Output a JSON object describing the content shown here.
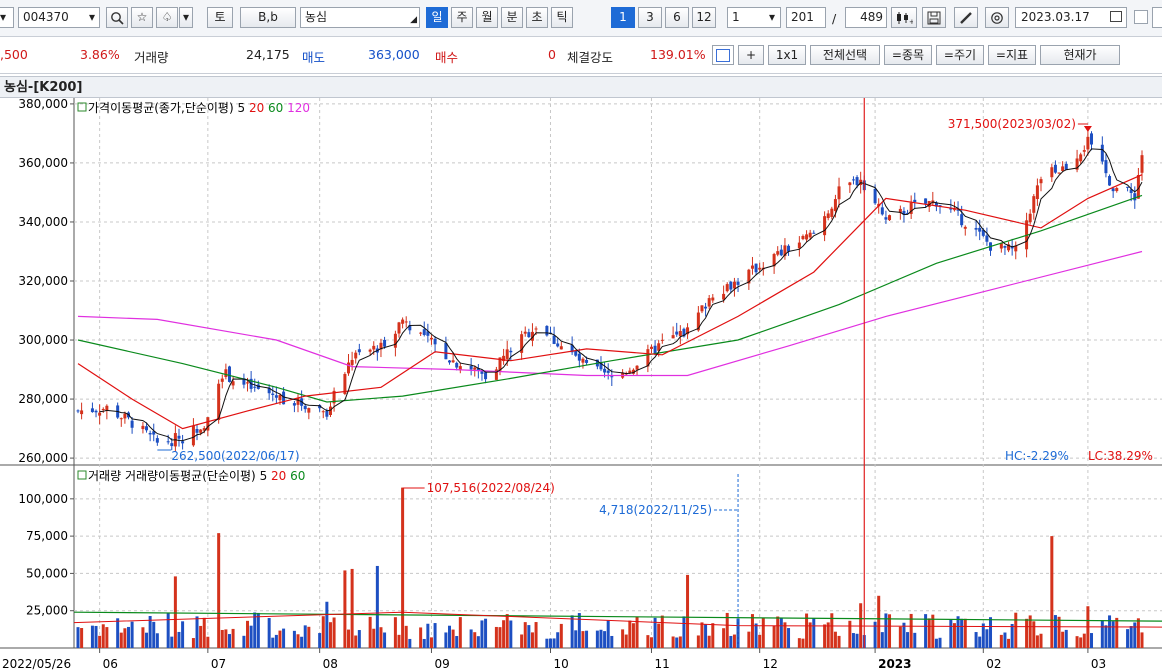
{
  "toolbar": {
    "code": "004370",
    "name": "농심",
    "bb_label": "B,b",
    "to_label": "토",
    "period_tabs": [
      "일",
      "주",
      "월",
      "분",
      "초",
      "틱"
    ],
    "active_period": "일",
    "interval_buttons": [
      "1",
      "3",
      "6",
      "12"
    ],
    "active_interval": "1",
    "unit_select": "1",
    "view_count": "201",
    "total_count": "489",
    "date": "2023.03.17"
  },
  "quote": {
    "price_tail": ",500",
    "change_pct": "3.86%",
    "volume_label": "거래량",
    "volume": "24,175",
    "sell_label": "매도",
    "sell": "363,000",
    "buy_label": "매수",
    "buy": "0",
    "strength_label": "체결강도",
    "strength": "139.01%",
    "buttons": [
      "+",
      "1x1",
      "전체선택",
      "=종목",
      "=주기",
      "=지표",
      "현재가"
    ]
  },
  "chart_title": "농심-[K200]",
  "colors": {
    "up": "#d4321c",
    "down": "#1d4fc2",
    "ma5": "#111111",
    "ma20": "#e01010",
    "ma60": "#0a8a1c",
    "ma120": "#e030e0",
    "grid": "#c8c8c8",
    "cursor": "#e02020"
  },
  "chart_data": [
    {
      "type": "candlestick",
      "legend": {
        "prefix": "가격이동평균(종가,단순이평)",
        "periods": [
          "5",
          "20",
          "60",
          "120"
        ]
      },
      "ylim": [
        258000,
        382000
      ],
      "y_ticks": [
        "380,000",
        "360,000",
        "340,000",
        "320,000",
        "300,000",
        "280,000",
        "260,000"
      ],
      "y_tick_values": [
        380000,
        360000,
        340000,
        320000,
        300000,
        280000,
        260000
      ],
      "high_annotation": "371,500(2023/03/02)",
      "low_annotation": "262,500(2022/06/17)",
      "hc_text": "HC:-2.29%",
      "lc_text": "LC:38.29%",
      "close_path": [
        {
          "date": "2022-05-26",
          "close": 276000
        },
        {
          "date": "2022-06-03",
          "close": 277000
        },
        {
          "date": "2022-06-10",
          "close": 272000
        },
        {
          "date": "2022-06-17",
          "close": 265000
        },
        {
          "date": "2022-06-24",
          "close": 267000
        },
        {
          "date": "2022-06-30",
          "close": 272000
        },
        {
          "date": "2022-07-05",
          "close": 289000
        },
        {
          "date": "2022-07-12",
          "close": 284000
        },
        {
          "date": "2022-07-20",
          "close": 281000
        },
        {
          "date": "2022-07-28",
          "close": 278000
        },
        {
          "date": "2022-08-03",
          "close": 276000
        },
        {
          "date": "2022-08-10",
          "close": 294000
        },
        {
          "date": "2022-08-18",
          "close": 298000
        },
        {
          "date": "2022-08-24",
          "close": 307000
        },
        {
          "date": "2022-08-31",
          "close": 300000
        },
        {
          "date": "2022-09-07",
          "close": 293000
        },
        {
          "date": "2022-09-16",
          "close": 288000
        },
        {
          "date": "2022-09-23",
          "close": 297000
        },
        {
          "date": "2022-09-30",
          "close": 305000
        },
        {
          "date": "2022-10-07",
          "close": 298000
        },
        {
          "date": "2022-10-14",
          "close": 291000
        },
        {
          "date": "2022-10-21",
          "close": 287000
        },
        {
          "date": "2022-10-28",
          "close": 292000
        },
        {
          "date": "2022-11-04",
          "close": 299000
        },
        {
          "date": "2022-11-11",
          "close": 303000
        },
        {
          "date": "2022-11-18",
          "close": 316000
        },
        {
          "date": "2022-11-25",
          "close": 320000
        },
        {
          "date": "2022-12-02",
          "close": 326000
        },
        {
          "date": "2022-12-09",
          "close": 331000
        },
        {
          "date": "2022-12-16",
          "close": 336000
        },
        {
          "date": "2022-12-23",
          "close": 350000
        },
        {
          "date": "2022-12-29",
          "close": 355000
        },
        {
          "date": "2023-01-05",
          "close": 340000
        },
        {
          "date": "2023-01-12",
          "close": 345000
        },
        {
          "date": "2023-01-19",
          "close": 347000
        },
        {
          "date": "2023-01-27",
          "close": 340000
        },
        {
          "date": "2023-02-03",
          "close": 332000
        },
        {
          "date": "2023-02-10",
          "close": 330000
        },
        {
          "date": "2023-02-17",
          "close": 355000
        },
        {
          "date": "2023-02-24",
          "close": 359000
        },
        {
          "date": "2023-03-02",
          "close": 367000
        },
        {
          "date": "2023-03-09",
          "close": 352000
        },
        {
          "date": "2023-03-15",
          "close": 349000
        },
        {
          "date": "2023-03-17",
          "close": 363000
        }
      ],
      "ma20": [
        {
          "date": "2022-05-26",
          "v": 292000
        },
        {
          "date": "2022-06-10",
          "v": 280000
        },
        {
          "date": "2022-06-24",
          "v": 270000
        },
        {
          "date": "2022-07-12",
          "v": 276000
        },
        {
          "date": "2022-07-28",
          "v": 281000
        },
        {
          "date": "2022-08-18",
          "v": 284000
        },
        {
          "date": "2022-09-02",
          "v": 296000
        },
        {
          "date": "2022-09-23",
          "v": 293000
        },
        {
          "date": "2022-10-14",
          "v": 297000
        },
        {
          "date": "2022-11-04",
          "v": 295000
        },
        {
          "date": "2022-11-25",
          "v": 308000
        },
        {
          "date": "2022-12-16",
          "v": 323000
        },
        {
          "date": "2023-01-05",
          "v": 348000
        },
        {
          "date": "2023-01-27",
          "v": 344000
        },
        {
          "date": "2023-02-17",
          "v": 338000
        },
        {
          "date": "2023-03-02",
          "v": 348000
        },
        {
          "date": "2023-03-17",
          "v": 356000
        }
      ],
      "ma60": [
        {
          "date": "2022-05-26",
          "v": 300000
        },
        {
          "date": "2022-06-24",
          "v": 292000
        },
        {
          "date": "2022-07-20",
          "v": 284000
        },
        {
          "date": "2022-08-03",
          "v": 279000
        },
        {
          "date": "2022-08-24",
          "v": 281000
        },
        {
          "date": "2022-09-23",
          "v": 287000
        },
        {
          "date": "2022-10-21",
          "v": 293000
        },
        {
          "date": "2022-11-25",
          "v": 300000
        },
        {
          "date": "2022-12-23",
          "v": 312000
        },
        {
          "date": "2023-01-19",
          "v": 326000
        },
        {
          "date": "2023-02-17",
          "v": 337000
        },
        {
          "date": "2023-03-17",
          "v": 349000
        }
      ],
      "ma120": [
        {
          "date": "2022-05-26",
          "v": 308000
        },
        {
          "date": "2022-06-17",
          "v": 307000
        },
        {
          "date": "2022-07-20",
          "v": 300000
        },
        {
          "date": "2022-08-10",
          "v": 291000
        },
        {
          "date": "2022-09-07",
          "v": 290000
        },
        {
          "date": "2022-10-14",
          "v": 288000
        },
        {
          "date": "2022-11-11",
          "v": 288000
        },
        {
          "date": "2022-12-09",
          "v": 298000
        },
        {
          "date": "2023-01-05",
          "v": 308000
        },
        {
          "date": "2023-02-03",
          "v": 317000
        },
        {
          "date": "2023-03-17",
          "v": 330000
        }
      ]
    },
    {
      "type": "bar",
      "legend": {
        "prefix": "거래량",
        "prefix2": "거래량이동평균(단순이평)",
        "periods": [
          "5",
          "20",
          "60"
        ]
      },
      "ylim": [
        0,
        122000
      ],
      "y_ticks": [
        "100,000",
        "75,000",
        "50,000",
        "25,000"
      ],
      "y_tick_values": [
        100000,
        75000,
        50000,
        25000
      ],
      "max_annotation": "107,516(2022/08/24)",
      "cursor_annotation": "4,718(2022/11/25)",
      "spikes": [
        {
          "date": "2022-06-22",
          "v": 48000
        },
        {
          "date": "2022-07-04",
          "v": 77000
        },
        {
          "date": "2022-08-03",
          "v": 31000
        },
        {
          "date": "2022-08-08",
          "v": 52000
        },
        {
          "date": "2022-08-10",
          "v": 53000
        },
        {
          "date": "2022-08-17",
          "v": 55000
        },
        {
          "date": "2022-08-24",
          "v": 107516
        },
        {
          "date": "2022-11-11",
          "v": 49000
        },
        {
          "date": "2022-12-29",
          "v": 30000
        },
        {
          "date": "2023-01-03",
          "v": 35000
        },
        {
          "date": "2023-02-20",
          "v": 75000
        },
        {
          "date": "2023-03-02",
          "v": 28000
        }
      ]
    }
  ],
  "x_axis": {
    "start_label": "2022/05/26",
    "labels": [
      "06",
      "07",
      "08",
      "09",
      "10",
      "11",
      "12",
      "2023",
      "02",
      "03"
    ],
    "label_dates": [
      "2022-06-01",
      "2022-07-01",
      "2022-08-01",
      "2022-09-01",
      "2022-10-04",
      "2022-11-01",
      "2022-12-01",
      "2023-01-02",
      "2023-02-01",
      "2023-03-02"
    ],
    "start": "2022-05-26",
    "end": "2023-03-17",
    "cursor_date": "2022-12-30"
  }
}
